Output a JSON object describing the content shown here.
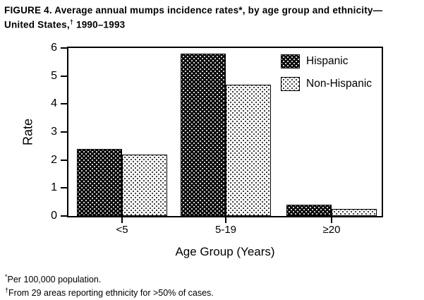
{
  "title": {
    "line1": "FIGURE 4. Average annual mumps incidence rates*, by age group and ethnicity—",
    "line2_pre": "United States,",
    "line2_sup": "†",
    "line2_post": " 1990–1993"
  },
  "chart_data": {
    "type": "bar",
    "title": "FIGURE 4. Average annual mumps incidence rates*, by age group and ethnicity—United States,† 1990–1993",
    "categories": [
      "<5",
      "5-19",
      "≥20"
    ],
    "series": [
      {
        "name": "Hispanic",
        "values": [
          2.4,
          5.8,
          0.4
        ]
      },
      {
        "name": "Non-Hispanic",
        "values": [
          2.2,
          4.7,
          0.25
        ]
      }
    ],
    "xlabel": "Age Group (Years)",
    "ylabel": "Rate",
    "ylim": [
      0,
      6
    ],
    "yticks": [
      0,
      1,
      2,
      3,
      4,
      5,
      6
    ],
    "legend_position": "top-right",
    "grid": false,
    "colors": {
      "hispanic_fill": "#000000",
      "non_hispanic_fill": "#fdfdfd",
      "axis": "#000000",
      "background": "#ffffff"
    }
  },
  "footnotes": [
    {
      "sup": "*",
      "text": "Per 100,000 population."
    },
    {
      "sup": "†",
      "text": "From 29 areas reporting ethnicity for >50% of cases."
    }
  ]
}
